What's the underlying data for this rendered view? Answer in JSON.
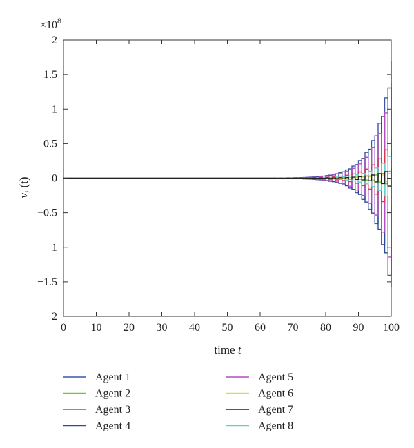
{
  "chart_data": {
    "type": "line",
    "step": true,
    "title": "",
    "xlabel": "time",
    "xlabel_var": "t",
    "ylabel": "v",
    "ylabel_sub": "i",
    "ylabel_arg": " (t)",
    "y_multiplier": "×10",
    "y_multiplier_exp": "8",
    "xlim": [
      0,
      100
    ],
    "ylim": [
      -2,
      2
    ],
    "xticks": [
      "0",
      "10",
      "20",
      "30",
      "40",
      "50",
      "60",
      "70",
      "80",
      "90",
      "100"
    ],
    "yticks": [
      "2",
      "1.5",
      "1",
      "0.5",
      "0",
      "−0.5",
      "−1",
      "−1.5",
      "−2"
    ],
    "grid": false,
    "legend_position": "below plot, two columns",
    "growth_note": "each series alternates sign every time step with amplitude ≈ a·exp(0.19·(t−100)), in units of 1e8",
    "series": [
      {
        "name": "Agent 1",
        "color": "#3a56b0",
        "amp_at_t100": 1.7
      },
      {
        "name": "Agent 2",
        "color": "#66cc33",
        "amp_at_t100": 0.12
      },
      {
        "name": "Agent 3",
        "color": "#dd3355",
        "amp_at_t100": 0.6
      },
      {
        "name": "Agent 4",
        "color": "#2b4c9a",
        "amp_at_t100": 1.58
      },
      {
        "name": "Agent 5",
        "color": "#b44fbf",
        "amp_at_t100": 1.38
      },
      {
        "name": "Agent 6",
        "color": "#dede44",
        "amp_at_t100": 0.08
      },
      {
        "name": "Agent 7",
        "color": "#222222",
        "amp_at_t100": 0.14
      },
      {
        "name": "Agent 8",
        "color": "#66cccc",
        "amp_at_t100": 0.38
      }
    ]
  }
}
